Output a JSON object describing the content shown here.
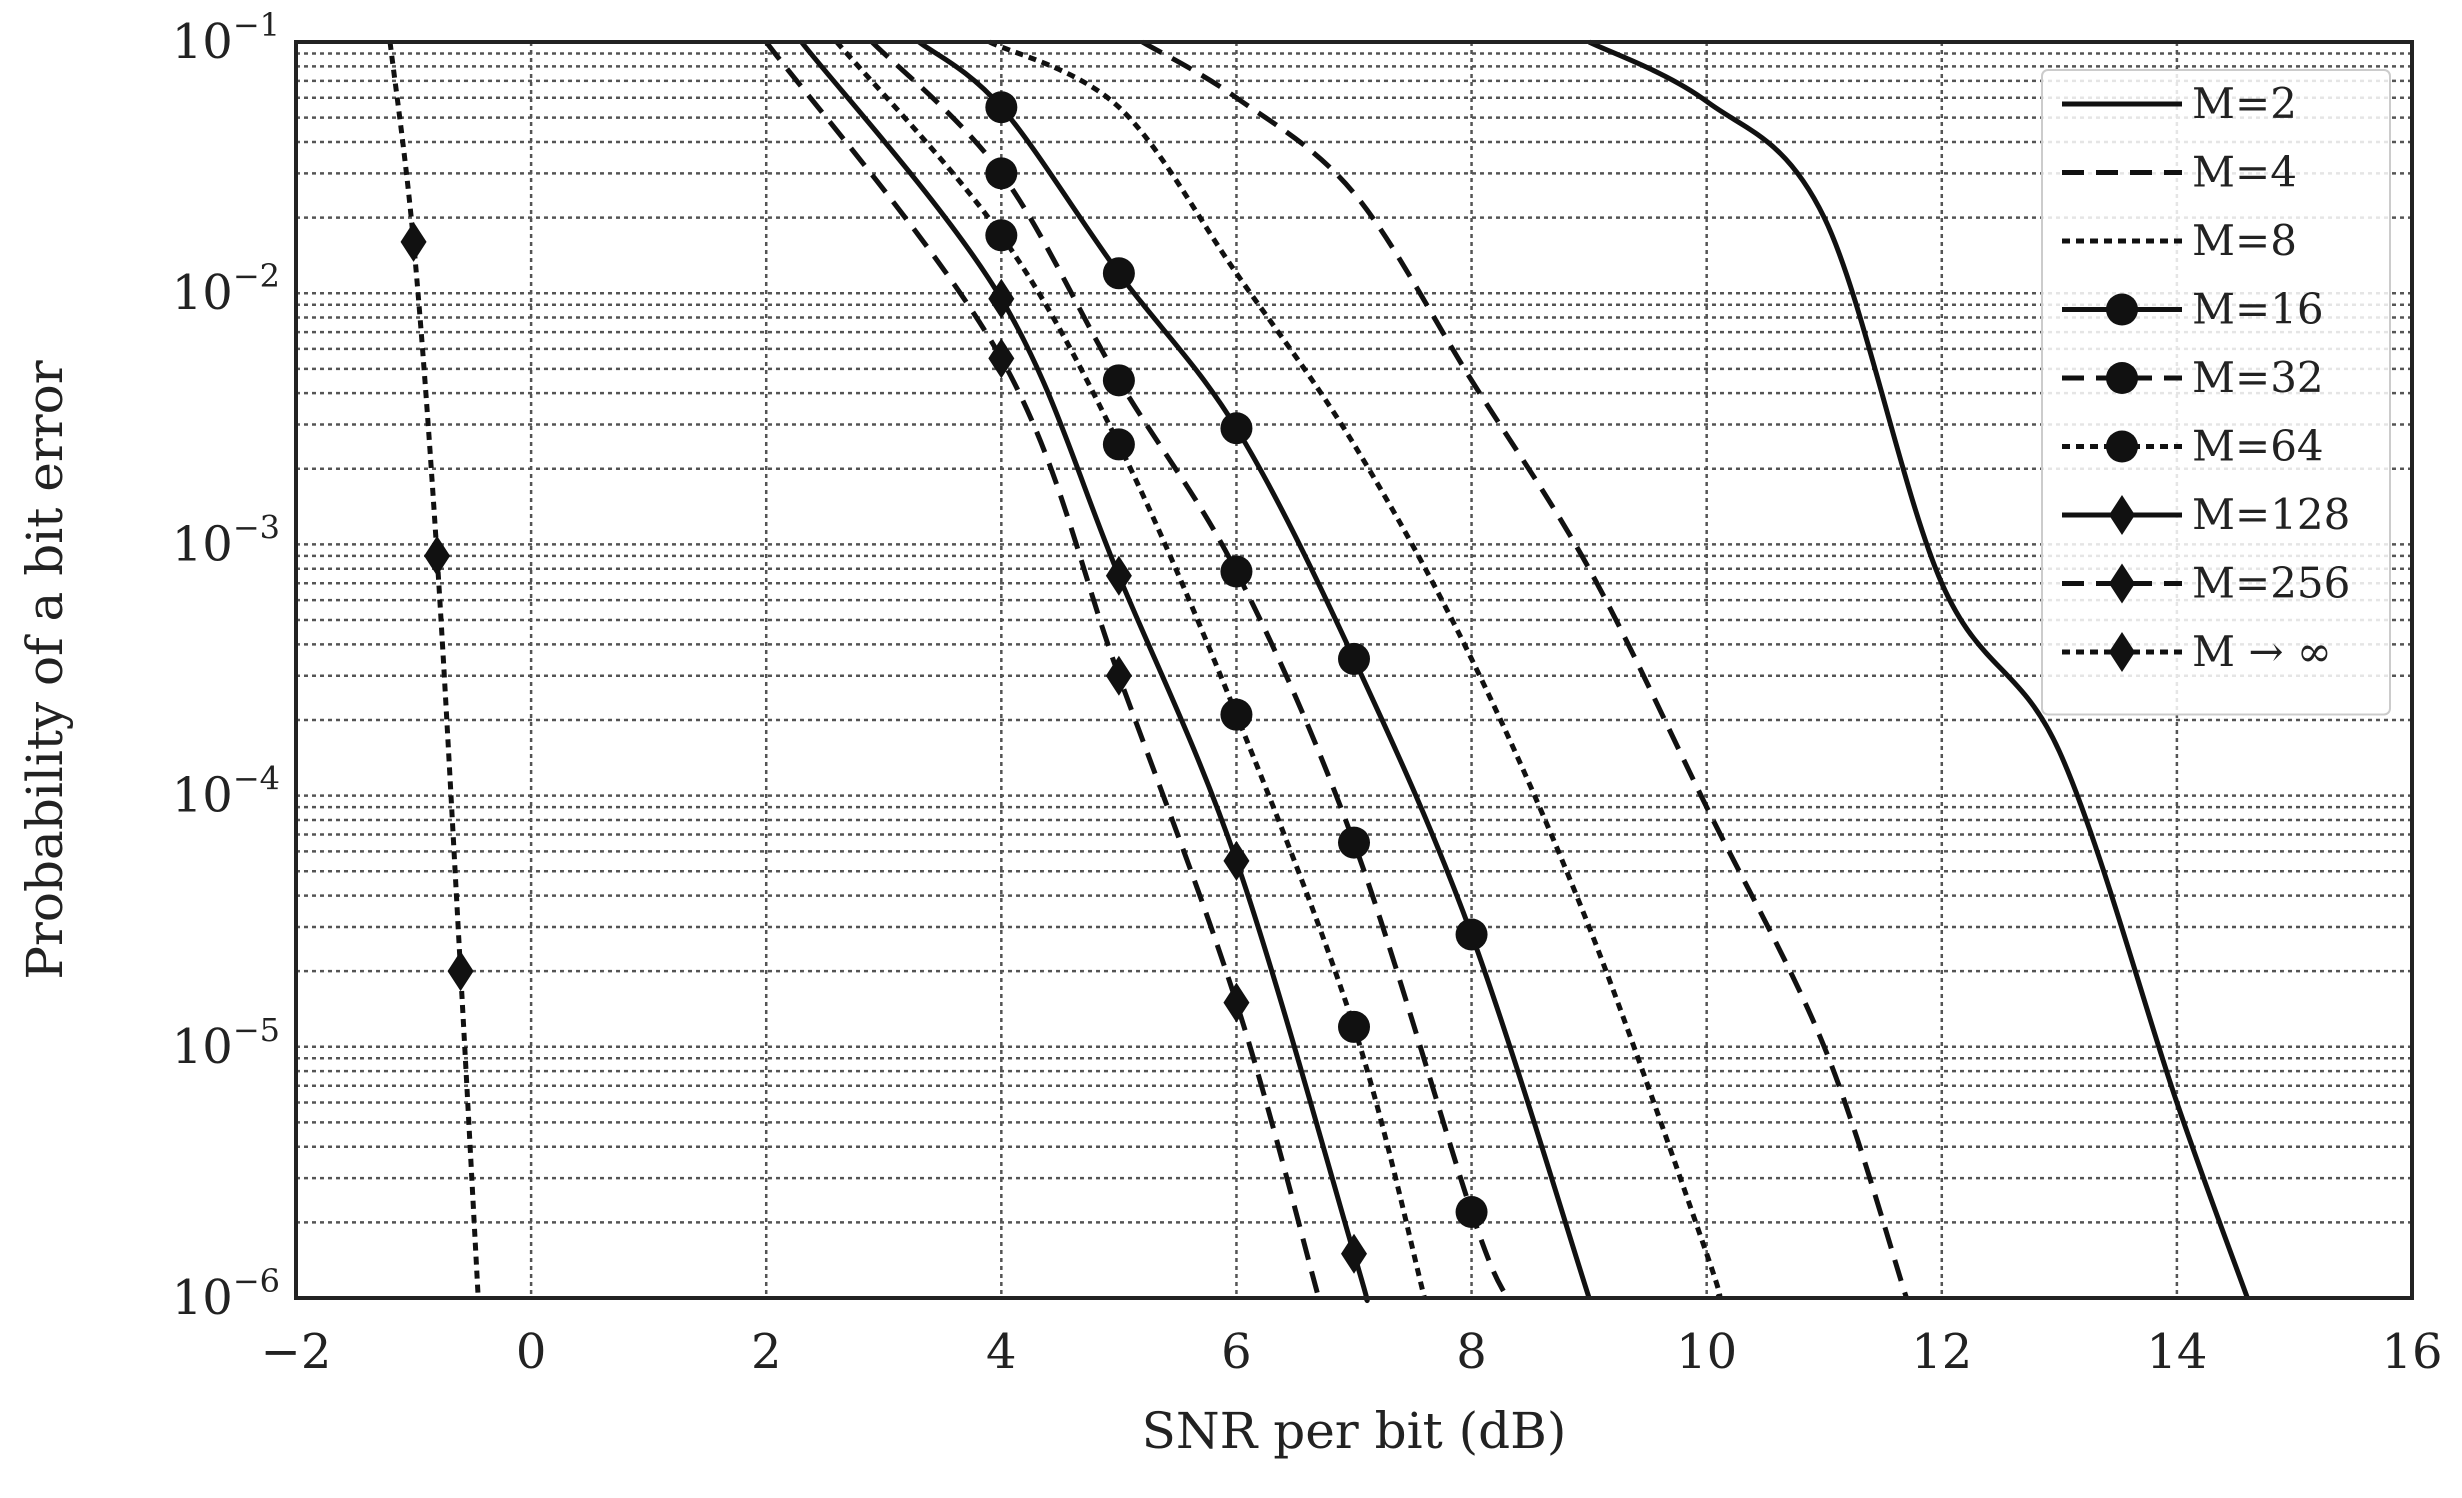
{
  "chart_data": {
    "type": "line",
    "xlabel": "SNR per bit (dB)",
    "ylabel": "Probability of a bit error",
    "xlim": [
      -2,
      16
    ],
    "ylim": [
      1e-06,
      0.1
    ],
    "yscale": "log",
    "grid": "major and minor, dotted",
    "legend_position": "upper-right",
    "x_ticks": [
      "−2",
      "0",
      "2",
      "4",
      "6",
      "8",
      "10",
      "12",
      "14",
      "16"
    ],
    "y_ticks": [
      {
        "base": "10",
        "exp": "−6"
      },
      {
        "base": "10",
        "exp": "−5"
      },
      {
        "base": "10",
        "exp": "−4"
      },
      {
        "base": "10",
        "exp": "−3"
      },
      {
        "base": "10",
        "exp": "−2"
      },
      {
        "base": "10",
        "exp": "−1"
      }
    ],
    "series": [
      {
        "name": "M=2",
        "dash": "solid",
        "marker": "none",
        "points": [
          [
            9.0,
            0.1
          ],
          [
            10,
            0.058
          ],
          [
            11,
            0.02
          ],
          [
            12,
            0.0007
          ],
          [
            13,
            0.00015
          ],
          [
            14,
            6e-06
          ],
          [
            14.6,
            1e-06
          ]
        ]
      },
      {
        "name": "M=4",
        "dash": "dashed",
        "marker": "none",
        "points": [
          [
            5.2,
            0.1
          ],
          [
            6,
            0.06
          ],
          [
            7,
            0.025
          ],
          [
            8,
            0.0045
          ],
          [
            9,
            0.0008
          ],
          [
            10,
            9e-05
          ],
          [
            11,
            1e-05
          ],
          [
            11.7,
            1e-06
          ]
        ]
      },
      {
        "name": "M=8",
        "dash": "dotted",
        "marker": "none",
        "points": [
          [
            3.9,
            0.1
          ],
          [
            5,
            0.055
          ],
          [
            6,
            0.012
          ],
          [
            7,
            0.0025
          ],
          [
            8,
            0.00035
          ],
          [
            9,
            3e-05
          ],
          [
            10,
            1.5e-06
          ],
          [
            10.1,
            1e-06
          ]
        ]
      },
      {
        "name": "M=16",
        "dash": "solid",
        "marker": "circle",
        "points": [
          [
            3.3,
            0.1
          ],
          [
            4,
            0.055
          ],
          [
            5,
            0.012
          ],
          [
            6,
            0.0029
          ],
          [
            7,
            0.00035
          ],
          [
            8,
            2.8e-05
          ],
          [
            9,
            1e-06
          ]
        ]
      },
      {
        "name": "M=32",
        "dash": "dashed",
        "marker": "circle",
        "points": [
          [
            2.9,
            0.1
          ],
          [
            4,
            0.03
          ],
          [
            5,
            0.0045
          ],
          [
            6,
            0.00078
          ],
          [
            7,
            6.5e-05
          ],
          [
            8,
            2.2e-06
          ],
          [
            8.3,
            1e-06
          ]
        ]
      },
      {
        "name": "M=64",
        "dash": "dotted",
        "marker": "circle",
        "points": [
          [
            2.6,
            0.1
          ],
          [
            4,
            0.017
          ],
          [
            5,
            0.0025
          ],
          [
            6,
            0.00021
          ],
          [
            7,
            1.2e-05
          ],
          [
            7.6,
            1e-06
          ]
        ]
      },
      {
        "name": "M=128",
        "dash": "solid",
        "marker": "diamond",
        "points": [
          [
            2.3,
            0.1
          ],
          [
            4,
            0.0095
          ],
          [
            5,
            0.00075
          ],
          [
            6,
            5.5e-05
          ],
          [
            7,
            1.5e-06
          ],
          [
            7.1,
            1e-06
          ]
        ]
      },
      {
        "name": "M=256",
        "dash": "dashed",
        "marker": "diamond",
        "points": [
          [
            2.0,
            0.1
          ],
          [
            4,
            0.0055
          ],
          [
            5,
            0.0003
          ],
          [
            6,
            1.5e-05
          ],
          [
            6.7,
            1e-06
          ]
        ]
      },
      {
        "name": "M → ∞",
        "dash": "dotted",
        "marker": "diamond",
        "points": [
          [
            -1.2,
            0.1
          ],
          [
            -1.0,
            0.016
          ],
          [
            -0.8,
            0.0009
          ],
          [
            -0.6,
            2e-05
          ],
          [
            -0.45,
            1e-06
          ]
        ]
      }
    ]
  }
}
